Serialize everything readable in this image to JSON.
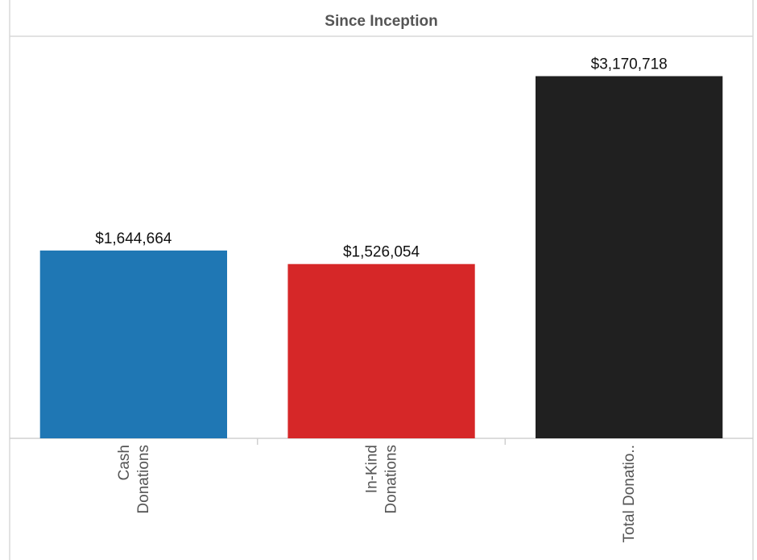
{
  "chart_data": {
    "type": "bar",
    "title": "Since Inception",
    "xlabel": "",
    "ylabel": "",
    "categories": [
      [
        "Cash",
        "Donations"
      ],
      [
        "In-Kind",
        "Donations"
      ],
      [
        "Total Donatio.."
      ]
    ],
    "values": [
      1644664,
      1526054,
      3170718
    ],
    "value_labels": [
      "$1,644,664",
      "$1,526,054",
      "$3,170,718"
    ],
    "colors": [
      "#1f77b4",
      "#d62728",
      "#202020"
    ],
    "ylim": [
      0,
      3520000
    ],
    "grid": false,
    "legend": "none"
  }
}
